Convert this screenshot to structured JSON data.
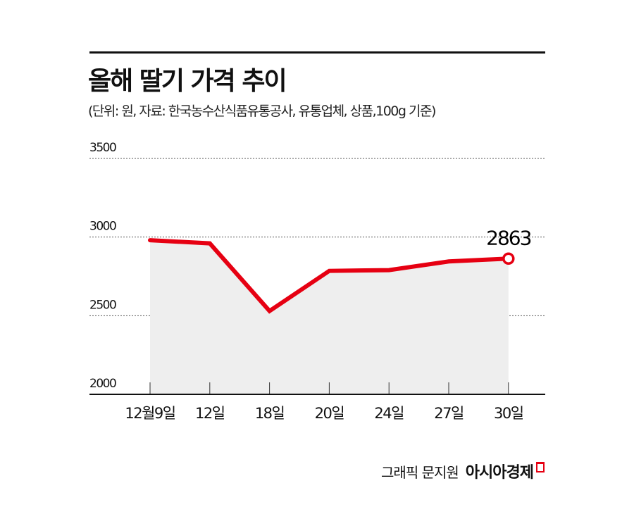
{
  "header": {
    "title": "올해 딸기 가격 추이",
    "subtitle": "(단위: 원, 자료: 한국농수산식품유통공사, 유통업체, 상품,100g 기준)"
  },
  "chart_data": {
    "type": "line",
    "title": "올해 딸기 가격 추이",
    "subtitle": "(단위: 원, 자료: 한국농수산식품유통공사, 유통업체, 상품,100g 기준)",
    "xlabel": "",
    "ylabel": "원",
    "categories": [
      "12월9일",
      "12일",
      "18일",
      "20일",
      "24일",
      "27일",
      "30일"
    ],
    "series": [
      {
        "name": "딸기 가격 (100g)",
        "values": [
          2980,
          2960,
          2530,
          2785,
          2790,
          2845,
          2863
        ],
        "color": "#e60012"
      }
    ],
    "yticks": [
      2000,
      2500,
      3000,
      3500
    ],
    "ylim": [
      2000,
      3500
    ],
    "grid": true,
    "annotations": [
      {
        "category": "30일",
        "value": 2863,
        "text": "2863"
      }
    ],
    "fill_color": "#eeeeee"
  },
  "footer": {
    "author": "그래픽 문지원",
    "brand": "아시아경제"
  }
}
